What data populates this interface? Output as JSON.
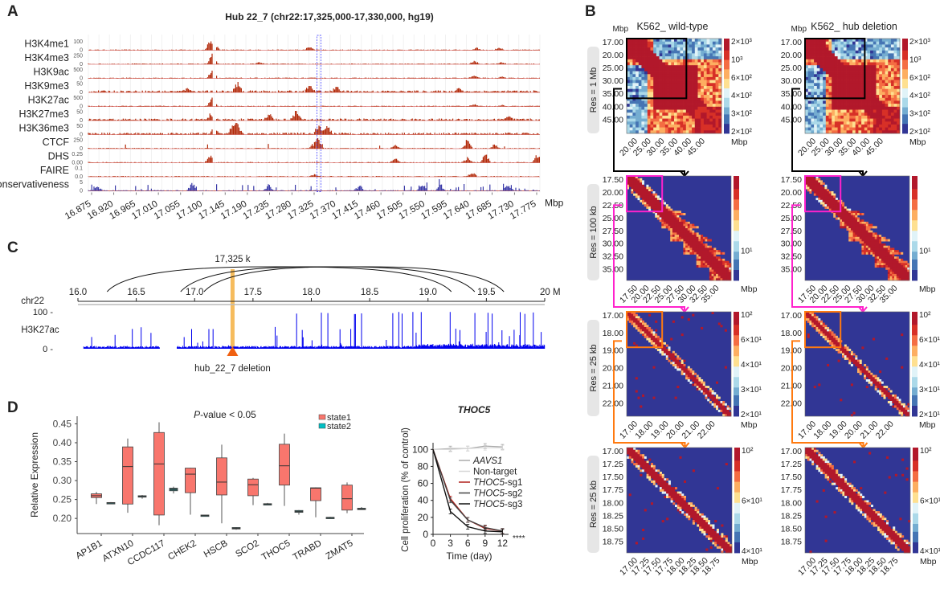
{
  "panels": {
    "A": {
      "letter": "A",
      "title": "Hub 22_7 (chr22:17,325,000-17,330,000, hg19)",
      "tracks": [
        {
          "name": "H3K4me1",
          "max": "100",
          "min": "0"
        },
        {
          "name": "H3K4me3",
          "max": "250",
          "min": "0"
        },
        {
          "name": "H3K9ac",
          "max": "500",
          "min": "0"
        },
        {
          "name": "H3K9me3",
          "max": "50",
          "min": "0"
        },
        {
          "name": "H3K27ac",
          "max": "500",
          "min": "0"
        },
        {
          "name": "H3K27me3",
          "max": "50",
          "min": "0"
        },
        {
          "name": "H3K36me3",
          "max": "50",
          "min": "0"
        },
        {
          "name": "CTCF",
          "max": "250",
          "min": "0"
        },
        {
          "name": "DHS",
          "max": "0.25",
          "min": "0.00"
        },
        {
          "name": "FAIRE",
          "max": "0.1",
          "min": "0.0"
        },
        {
          "name": "conservativeness",
          "max": "5",
          "min": "0"
        }
      ],
      "x_ticks": [
        "16.875",
        "16.920",
        "16.965",
        "17.010",
        "17.055",
        "17.100",
        "17.145",
        "17.190",
        "17.235",
        "17.280",
        "17.325",
        "17.370",
        "17.415",
        "17.460",
        "17.505",
        "17.550",
        "17.595",
        "17.640",
        "17.685",
        "17.730",
        "17.775"
      ],
      "x_unit": "Mbp",
      "track_color": "#b22a0a",
      "conservation_color": "#3a3aa8",
      "highlight_color": "#5a5aff",
      "highlight_position": "17.325"
    },
    "B": {
      "letter": "B",
      "col_titles": [
        "K562_ wild-type",
        "K562_ hub deletion"
      ],
      "rows": [
        {
          "res_label": "Res = 1 Mb",
          "y_ticks": [
            "17.00",
            "20.00",
            "25.00",
            "30.00",
            "35.00",
            "40.00",
            "45.00"
          ],
          "x_ticks": [
            "20.00",
            "25.00",
            "30.00",
            "35.00",
            "40.00",
            "45.00"
          ],
          "colorbar": [
            "2×10³",
            "10³",
            "6×10²",
            "4×10²",
            "3×10²",
            "2×10²"
          ],
          "axis_unit": "Mbp",
          "y_unit": "Mbp",
          "highlight_color": "#000000"
        },
        {
          "res_label": "Res = 100 kb",
          "y_ticks": [
            "17.50",
            "20.00",
            "22.50",
            "25.00",
            "27.50",
            "30.00",
            "32.50",
            "35.00"
          ],
          "x_ticks": [
            "17.50",
            "20.00",
            "22.50",
            "25.00",
            "27.50",
            "30.00",
            "32.50",
            "35.00"
          ],
          "colorbar": [
            "10¹"
          ],
          "axis_unit": "Mbp",
          "highlight_color": "#ff22cc"
        },
        {
          "res_label": "Res = 25 kb",
          "y_ticks": [
            "17.00",
            "18.00",
            "19.00",
            "20.00",
            "21.00",
            "22.00"
          ],
          "x_ticks": [
            "17.00",
            "18.00",
            "19.00",
            "20.00",
            "21.00",
            "22.00"
          ],
          "colorbar": [
            "10²",
            "6×10¹",
            "4×10¹",
            "3×10¹",
            "2×10¹"
          ],
          "axis_unit": "Mbp",
          "highlight_color": "#ff7a10"
        },
        {
          "res_label": "Res = 25 kb",
          "y_ticks": [
            "17.00",
            "17.25",
            "17.50",
            "17.75",
            "18.00",
            "18.25",
            "18.50",
            "18.75"
          ],
          "x_ticks": [
            "17.00",
            "17.25",
            "17.50",
            "17.75",
            "18.00",
            "18.25",
            "18.50",
            "18.75"
          ],
          "colorbar": [
            "10²",
            "6×10¹",
            "4×10¹"
          ],
          "axis_unit": "Mbp",
          "highlight_color": null
        }
      ]
    },
    "C": {
      "letter": "C",
      "marker_label": "17,325 k",
      "chrom_label": "chr22",
      "axis_ticks": [
        "16.0",
        "16.5",
        "17.0",
        "17.5",
        "18.0",
        "18.5",
        "19.0",
        "19.5",
        "20 M"
      ],
      "axis_range": [
        16.0,
        20.0
      ],
      "marker_position": 17.325,
      "arcs": [
        [
          16.25,
          19.2
        ],
        [
          16.88,
          19.4
        ],
        [
          17.08,
          19.65
        ]
      ],
      "track_label": "H3K27ac",
      "track_max": "100",
      "track_min": "0",
      "gap_region": [
        16.7,
        16.85
      ],
      "deletion_label": "hub_22_7 deletion",
      "signal_color": "#0000ee",
      "marker_color": "#f5b041",
      "triangle_color": "#f06010"
    },
    "D": {
      "letter": "D"
    }
  },
  "chart_data": [
    {
      "type": "box",
      "title": "P-value < 0.05",
      "title_italic_part": "P",
      "title_rest": "-value < 0.05",
      "ylabel": "Relative Expression",
      "ylim": [
        0.16,
        0.47
      ],
      "y_ticks": [
        "0.20",
        "0.25",
        "0.30",
        "0.35",
        "0.40",
        "0.45"
      ],
      "categories": [
        "AP1B1",
        "ATXN10",
        "CCDC117",
        "CHEK2",
        "HSCB",
        "SCO2",
        "THOC5",
        "TRABD",
        "ZMAT5"
      ],
      "legend": [
        {
          "name": "state1",
          "color": "#f8766d"
        },
        {
          "name": "state2",
          "color": "#00bfc4"
        }
      ],
      "series": [
        {
          "name": "state1",
          "boxes": [
            {
              "min": 0.238,
              "q1": 0.255,
              "median": 0.26,
              "q3": 0.265,
              "max": 0.27
            },
            {
              "min": 0.215,
              "q1": 0.238,
              "median": 0.337,
              "q3": 0.389,
              "max": 0.411
            },
            {
              "min": 0.182,
              "q1": 0.209,
              "median": 0.344,
              "q3": 0.427,
              "max": 0.454
            },
            {
              "min": 0.21,
              "q1": 0.268,
              "median": 0.317,
              "q3": 0.333,
              "max": 0.334
            },
            {
              "min": 0.187,
              "q1": 0.262,
              "median": 0.296,
              "q3": 0.36,
              "max": 0.395
            },
            {
              "min": 0.235,
              "q1": 0.26,
              "median": 0.289,
              "q3": 0.304,
              "max": 0.307
            },
            {
              "min": 0.233,
              "q1": 0.288,
              "median": 0.339,
              "q3": 0.396,
              "max": 0.424
            },
            {
              "min": 0.203,
              "q1": 0.247,
              "median": 0.28,
              "q3": 0.281,
              "max": 0.282
            },
            {
              "min": 0.214,
              "q1": 0.222,
              "median": 0.252,
              "q3": 0.288,
              "max": 0.295
            }
          ]
        },
        {
          "name": "state2",
          "boxes": [
            {
              "min": 0.24,
              "q1": 0.241,
              "median": 0.241,
              "q3": 0.242,
              "max": 0.243
            },
            {
              "min": 0.252,
              "q1": 0.257,
              "median": 0.258,
              "q3": 0.26,
              "max": 0.262
            },
            {
              "min": 0.266,
              "q1": 0.273,
              "median": 0.277,
              "q3": 0.28,
              "max": 0.284
            },
            {
              "min": 0.208,
              "q1": 0.208,
              "median": 0.208,
              "q3": 0.209,
              "max": 0.209
            },
            {
              "min": 0.17,
              "q1": 0.172,
              "median": 0.174,
              "q3": 0.176,
              "max": 0.177
            },
            {
              "min": 0.236,
              "q1": 0.237,
              "median": 0.238,
              "q3": 0.239,
              "max": 0.241
            },
            {
              "min": 0.21,
              "q1": 0.216,
              "median": 0.218,
              "q3": 0.221,
              "max": 0.222
            },
            {
              "min": 0.201,
              "q1": 0.202,
              "median": 0.202,
              "q3": 0.203,
              "max": 0.204
            },
            {
              "min": 0.223,
              "q1": 0.224,
              "median": 0.225,
              "q3": 0.227,
              "max": 0.23
            }
          ]
        }
      ]
    },
    {
      "type": "line",
      "title": "THOC5",
      "xlabel": "Time (day)",
      "ylabel": "Cell proliferation (% of control)",
      "x": [
        0,
        3,
        6,
        9,
        12
      ],
      "xlim": [
        0,
        12.5
      ],
      "ylim": [
        0,
        105
      ],
      "x_ticks": [
        "0",
        "3",
        "6",
        "9",
        "12"
      ],
      "y_ticks": [
        "0",
        "20",
        "40",
        "60",
        "80",
        "100"
      ],
      "significance": "****",
      "series": [
        {
          "name": "AAVS1",
          "italic": true,
          "suffix": "",
          "color": "#aaaaaa",
          "values": [
            100,
            101,
            101,
            104,
            103
          ]
        },
        {
          "name": "Non-target",
          "italic": false,
          "suffix": "",
          "color": "#d6d6d6",
          "values": [
            100,
            100,
            101,
            102,
            102
          ]
        },
        {
          "name": "THOC5",
          "italic": true,
          "suffix": "-sg1",
          "color": "#b0201a",
          "values": [
            100,
            42,
            17,
            7,
            4
          ]
        },
        {
          "name": "THOC5",
          "italic": true,
          "suffix": "-sg2",
          "color": "#444444",
          "values": [
            100,
            40,
            17,
            8,
            4
          ]
        },
        {
          "name": "THOC5",
          "italic": true,
          "suffix": "-sg3",
          "color": "#111111",
          "values": [
            100,
            27,
            9,
            4,
            3
          ]
        }
      ]
    }
  ]
}
